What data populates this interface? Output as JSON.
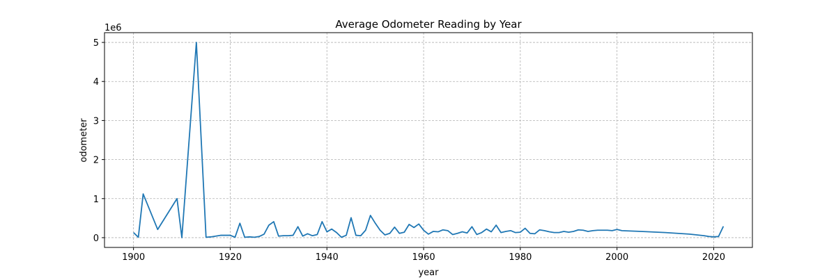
{
  "chart_data": {
    "type": "line",
    "title": "Average Odometer Reading by Year",
    "xlabel": "year",
    "ylabel": "odometer",
    "y_offset_label": "1e6",
    "xlim": [
      1894,
      2028
    ],
    "ylim": [
      -0.25,
      5.25
    ],
    "xticks": [
      1900,
      1920,
      1940,
      1960,
      1980,
      2000,
      2020
    ],
    "yticks": [
      0,
      1,
      2,
      3,
      4,
      5
    ],
    "grid": true,
    "series": [
      {
        "color": "#1f77b4",
        "x": [
          1900,
          1901,
          1902,
          1905,
          1909,
          1910,
          1913,
          1915,
          1916,
          1917,
          1918,
          1919,
          1920,
          1921,
          1922,
          1923,
          1924,
          1925,
          1926,
          1927,
          1928,
          1929,
          1930,
          1931,
          1932,
          1933,
          1934,
          1935,
          1936,
          1937,
          1938,
          1939,
          1940,
          1941,
          1942,
          1943,
          1944,
          1945,
          1946,
          1947,
          1948,
          1949,
          1950,
          1951,
          1952,
          1953,
          1954,
          1955,
          1956,
          1957,
          1958,
          1959,
          1960,
          1961,
          1962,
          1963,
          1964,
          1965,
          1966,
          1967,
          1968,
          1969,
          1970,
          1971,
          1972,
          1973,
          1974,
          1975,
          1976,
          1977,
          1978,
          1979,
          1980,
          1981,
          1982,
          1983,
          1984,
          1985,
          1986,
          1987,
          1988,
          1989,
          1990,
          1991,
          1992,
          1993,
          1994,
          1995,
          1996,
          1997,
          1998,
          1999,
          2000,
          2001,
          2005,
          2010,
          2015,
          2018,
          2019,
          2020,
          2021,
          2022
        ],
        "y": [
          0.13,
          0.01,
          1.12,
          0.21,
          1.0,
          0.0,
          5.0,
          0.01,
          0.02,
          0.04,
          0.06,
          0.06,
          0.06,
          0.01,
          0.37,
          0.01,
          0.02,
          0.01,
          0.03,
          0.09,
          0.32,
          0.41,
          0.04,
          0.05,
          0.05,
          0.06,
          0.28,
          0.04,
          0.1,
          0.05,
          0.08,
          0.41,
          0.15,
          0.22,
          0.13,
          0.01,
          0.06,
          0.51,
          0.06,
          0.05,
          0.19,
          0.57,
          0.37,
          0.19,
          0.07,
          0.11,
          0.27,
          0.11,
          0.14,
          0.34,
          0.26,
          0.35,
          0.19,
          0.09,
          0.16,
          0.15,
          0.2,
          0.18,
          0.08,
          0.11,
          0.15,
          0.12,
          0.28,
          0.08,
          0.13,
          0.22,
          0.15,
          0.32,
          0.13,
          0.16,
          0.18,
          0.13,
          0.14,
          0.24,
          0.11,
          0.1,
          0.2,
          0.18,
          0.15,
          0.13,
          0.13,
          0.16,
          0.14,
          0.16,
          0.2,
          0.19,
          0.16,
          0.18,
          0.19,
          0.19,
          0.19,
          0.18,
          0.21,
          0.18,
          0.16,
          0.13,
          0.09,
          0.05,
          0.03,
          0.02,
          0.03,
          0.29
        ]
      }
    ]
  }
}
